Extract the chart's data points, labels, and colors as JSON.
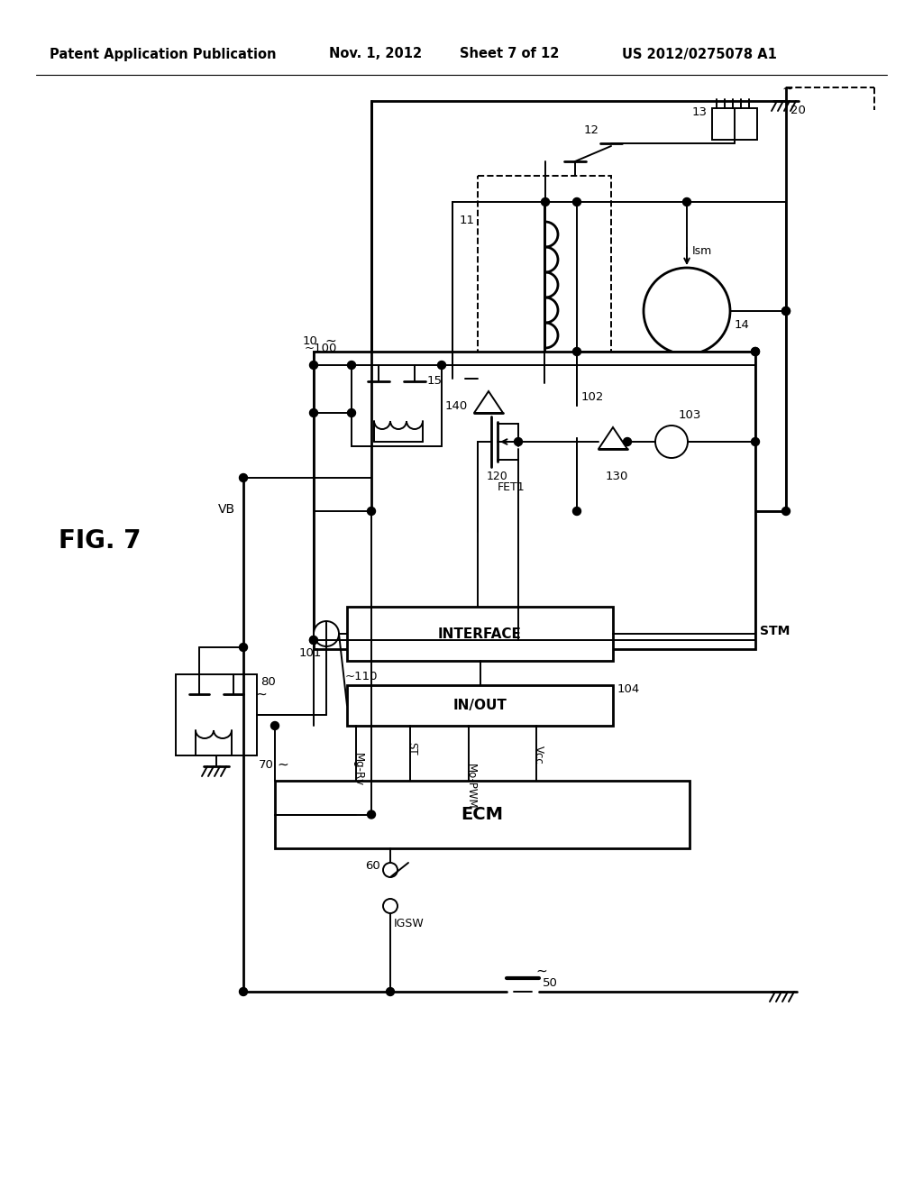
{
  "title_left": "Patent Application Publication",
  "title_date": "Nov. 1, 2012",
  "title_sheet": "Sheet 7 of 12",
  "title_patent": "US 2012/0275078 A1",
  "fig_label": "FIG. 7",
  "background_color": "#ffffff",
  "line_color": "#000000",
  "header_fontsize": 10.5,
  "fig_fontsize": 20
}
